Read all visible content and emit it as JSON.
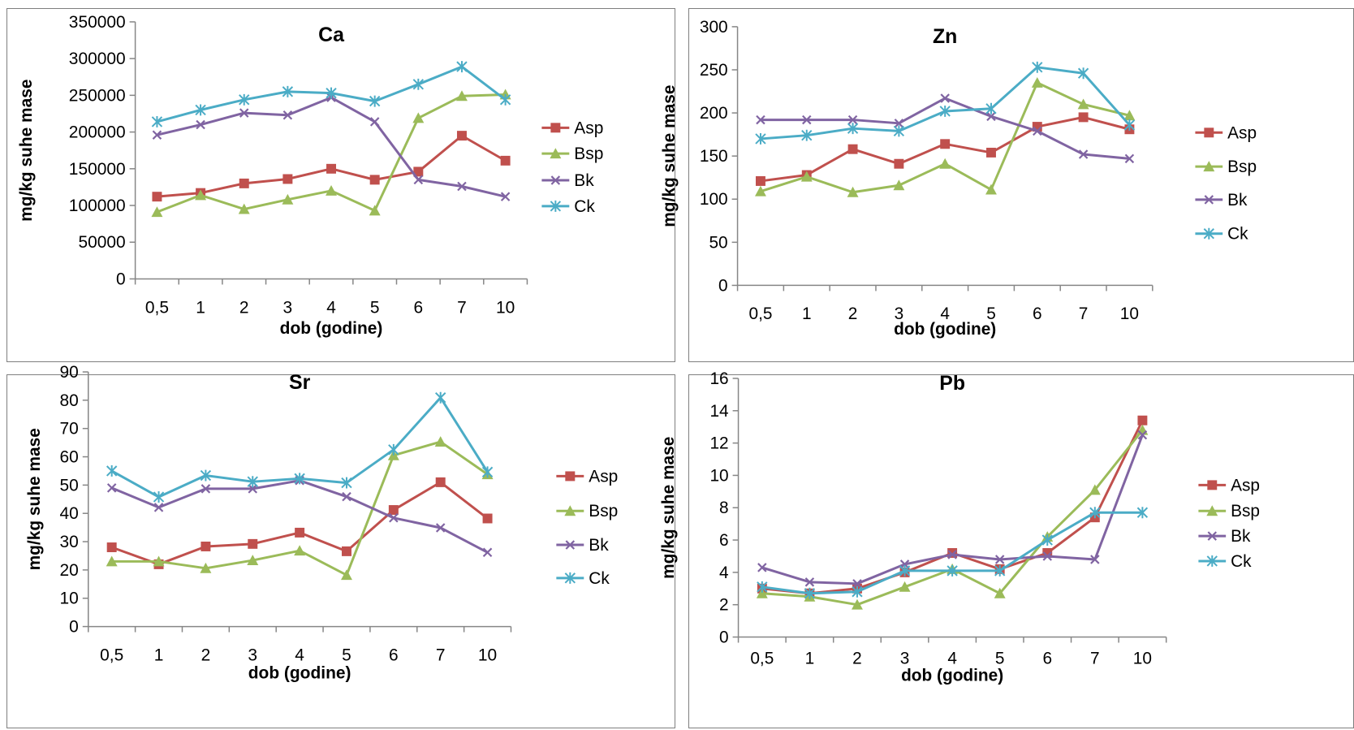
{
  "colors": {
    "Asp": "#c0504d",
    "Bsp": "#9bbb59",
    "Bk": "#8064a2",
    "Ck": "#4bacc6"
  },
  "markers": {
    "Asp": "square",
    "Bsp": "triangle",
    "Bk": "x",
    "Ck": "star"
  },
  "chart_data": [
    {
      "type": "line",
      "title": "Ca",
      "xlabel": "dob (godine)",
      "ylabel": "mg/kg suhe mase",
      "categories": [
        "0,5",
        "1",
        "2",
        "3",
        "4",
        "5",
        "6",
        "7",
        "10"
      ],
      "yticks": [
        "0",
        "50000",
        "100000",
        "150000",
        "200000",
        "250000",
        "300000",
        "350000"
      ],
      "ylim": [
        0,
        350000
      ],
      "legend_position": "right",
      "series": [
        {
          "name": "Asp",
          "values": [
            112000,
            117000,
            130000,
            136000,
            150000,
            135000,
            146000,
            195000,
            161000
          ]
        },
        {
          "name": "Bsp",
          "values": [
            91000,
            114000,
            95000,
            108000,
            120000,
            93000,
            219000,
            249000,
            251000
          ]
        },
        {
          "name": "Bk",
          "values": [
            196000,
            210000,
            226000,
            223000,
            247000,
            214000,
            135000,
            126000,
            112000
          ]
        },
        {
          "name": "Ck",
          "values": [
            214000,
            230000,
            244000,
            255000,
            253000,
            242000,
            265000,
            289000,
            244000
          ]
        }
      ]
    },
    {
      "type": "line",
      "title": "Zn",
      "xlabel": "dob (godine)",
      "ylabel": "mg/kg suhe mase",
      "categories": [
        "0,5",
        "1",
        "2",
        "3",
        "4",
        "5",
        "6",
        "7",
        "10"
      ],
      "yticks": [
        "0",
        "50",
        "100",
        "150",
        "200",
        "250",
        "300"
      ],
      "ylim": [
        0,
        300
      ],
      "legend_position": "right",
      "series": [
        {
          "name": "Asp",
          "values": [
            121,
            128,
            158,
            141,
            164,
            154,
            184,
            195,
            181
          ]
        },
        {
          "name": "Bsp",
          "values": [
            109,
            126,
            108,
            116,
            141,
            111,
            235,
            210,
            197
          ]
        },
        {
          "name": "Bk",
          "values": [
            192,
            192,
            192,
            188,
            217,
            196,
            179,
            152,
            147
          ]
        },
        {
          "name": "Ck",
          "values": [
            170,
            174,
            182,
            179,
            202,
            205,
            253,
            246,
            186
          ]
        }
      ]
    },
    {
      "type": "line",
      "title": "Sr",
      "xlabel": "dob (godine)",
      "ylabel": "mg/kg suhe mase",
      "categories": [
        "0,5",
        "1",
        "2",
        "3",
        "4",
        "5",
        "6",
        "7",
        "10"
      ],
      "yticks": [
        "0",
        "10",
        "20",
        "30",
        "40",
        "50",
        "60",
        "70",
        "80",
        "90"
      ],
      "ylim": [
        0,
        90
      ],
      "legend_position": "right",
      "series": [
        {
          "name": "Asp",
          "values": [
            28,
            22,
            28.3,
            29.2,
            33.2,
            26.6,
            41.2,
            51,
            38.2
          ]
        },
        {
          "name": "Bsp",
          "values": [
            23,
            23,
            20.6,
            23.4,
            26.8,
            18.2,
            60.5,
            65.3,
            53.8
          ]
        },
        {
          "name": "Bk",
          "values": [
            49,
            42.1,
            48.7,
            48.7,
            51.6,
            45.9,
            38.4,
            34.9,
            26.2
          ]
        },
        {
          "name": "Ck",
          "values": [
            55,
            45.8,
            53.4,
            51.2,
            52.3,
            50.8,
            62.5,
            80.9,
            54.6
          ]
        }
      ]
    },
    {
      "type": "line",
      "title": "Pb",
      "xlabel": "dob (godine)",
      "ylabel": "mg/kg suhe mase",
      "categories": [
        "0,5",
        "1",
        "2",
        "3",
        "4",
        "5",
        "6",
        "7",
        "10"
      ],
      "yticks": [
        "0",
        "2",
        "4",
        "6",
        "8",
        "10",
        "12",
        "14",
        "16"
      ],
      "ylim": [
        0,
        16
      ],
      "legend_position": "right",
      "series": [
        {
          "name": "Asp",
          "values": [
            3.0,
            2.7,
            3.0,
            4.0,
            5.2,
            4.2,
            5.2,
            7.4,
            13.4
          ]
        },
        {
          "name": "Bsp",
          "values": [
            2.7,
            2.5,
            2.0,
            3.1,
            4.2,
            2.7,
            6.2,
            9.1,
            12.8
          ]
        },
        {
          "name": "Bk",
          "values": [
            4.3,
            3.4,
            3.3,
            4.5,
            5.1,
            4.8,
            5.0,
            4.8,
            12.5
          ]
        },
        {
          "name": "Ck",
          "values": [
            3.1,
            2.7,
            2.8,
            4.1,
            4.1,
            4.1,
            6.0,
            7.7,
            7.7
          ]
        }
      ]
    }
  ]
}
